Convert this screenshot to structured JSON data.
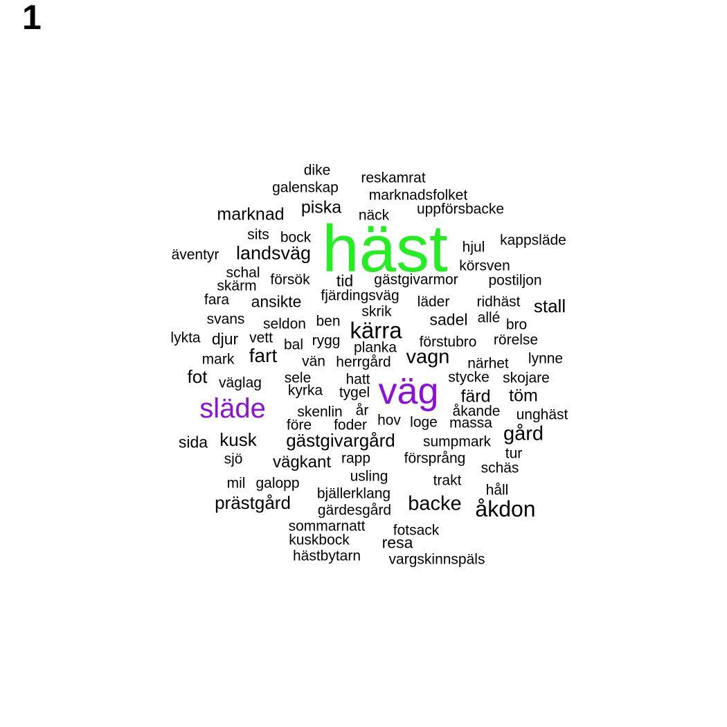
{
  "panel_label": "1",
  "colors": {
    "default": "#000000",
    "top": "#22ee22",
    "second": "#8a0fe0"
  },
  "words": [
    {
      "text": "häst",
      "color": "#22ee22"
    },
    {
      "text": "väg",
      "color": "#8a0fe0"
    },
    {
      "text": "släde",
      "color": "#8a0fe0"
    },
    {
      "text": "kärra"
    },
    {
      "text": "åkdon"
    },
    {
      "text": "backe"
    },
    {
      "text": "gård"
    },
    {
      "text": "vagn"
    },
    {
      "text": "fart"
    },
    {
      "text": "landsväg"
    },
    {
      "text": "gästgivargård"
    },
    {
      "text": "prästgård"
    },
    {
      "text": "kusk"
    },
    {
      "text": "marknad"
    },
    {
      "text": "piska"
    },
    {
      "text": "stall"
    },
    {
      "text": "fot"
    },
    {
      "text": "färd"
    },
    {
      "text": "töm"
    },
    {
      "text": "vägkant"
    },
    {
      "text": "ansikte"
    },
    {
      "text": "sida"
    },
    {
      "text": "djur"
    },
    {
      "text": "sadel"
    },
    {
      "text": "tid"
    },
    {
      "text": "resa"
    },
    {
      "text": "dike"
    },
    {
      "text": "reskamrat"
    },
    {
      "text": "galenskap"
    },
    {
      "text": "marknadsfolket"
    },
    {
      "text": "näck"
    },
    {
      "text": "uppförsbacke"
    },
    {
      "text": "sits"
    },
    {
      "text": "bock"
    },
    {
      "text": "kappsläde"
    },
    {
      "text": "hjul"
    },
    {
      "text": "äventyr"
    },
    {
      "text": "körsven"
    },
    {
      "text": "schal"
    },
    {
      "text": "försök"
    },
    {
      "text": "gästgivarmor"
    },
    {
      "text": "postiljon"
    },
    {
      "text": "skärm"
    },
    {
      "text": "fjärdingsväg"
    },
    {
      "text": "fara"
    },
    {
      "text": "läder"
    },
    {
      "text": "ridhäst"
    },
    {
      "text": "skrik"
    },
    {
      "text": "svans"
    },
    {
      "text": "allé"
    },
    {
      "text": "seldon"
    },
    {
      "text": "ben"
    },
    {
      "text": "bro"
    },
    {
      "text": "lykta"
    },
    {
      "text": "vett"
    },
    {
      "text": "rygg"
    },
    {
      "text": "förstubro"
    },
    {
      "text": "rörelse"
    },
    {
      "text": "bal"
    },
    {
      "text": "planka"
    },
    {
      "text": "mark"
    },
    {
      "text": "lynne"
    },
    {
      "text": "vän"
    },
    {
      "text": "herrgård"
    },
    {
      "text": "närhet"
    },
    {
      "text": "stycke"
    },
    {
      "text": "skojare"
    },
    {
      "text": "sele"
    },
    {
      "text": "hatt"
    },
    {
      "text": "väglag"
    },
    {
      "text": "kyrka"
    },
    {
      "text": "tygel"
    },
    {
      "text": "åkande"
    },
    {
      "text": "unghäst"
    },
    {
      "text": "skenlin"
    },
    {
      "text": "år"
    },
    {
      "text": "före"
    },
    {
      "text": "foder"
    },
    {
      "text": "hov"
    },
    {
      "text": "loge"
    },
    {
      "text": "massa"
    },
    {
      "text": "sumpmark"
    },
    {
      "text": "tur"
    },
    {
      "text": "sjö"
    },
    {
      "text": "rapp"
    },
    {
      "text": "försprång"
    },
    {
      "text": "schäs"
    },
    {
      "text": "usling"
    },
    {
      "text": "mil"
    },
    {
      "text": "galopp"
    },
    {
      "text": "trakt"
    },
    {
      "text": "håll"
    },
    {
      "text": "bjällerklang"
    },
    {
      "text": "gärdesgård"
    },
    {
      "text": "sommarnatt"
    },
    {
      "text": "fotsack"
    },
    {
      "text": "kuskbock"
    },
    {
      "text": "hästbytarn"
    },
    {
      "text": "vargskinnspäls"
    }
  ]
}
